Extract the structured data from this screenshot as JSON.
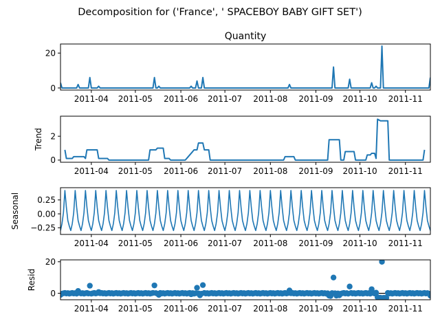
{
  "chart_data": {
    "type": "line",
    "suptitle": "Decomposition for ('France', ' SPACEBOY BABY GIFT SET')",
    "x_range": [
      "2011-03-11",
      "2011-11-18"
    ],
    "x_ticks": [
      "2011-04-01",
      "2011-05-01",
      "2011-06-01",
      "2011-07-01",
      "2011-08-01",
      "2011-09-01",
      "2011-10-01",
      "2011-11-01"
    ],
    "x_tick_labels": [
      "2011-04",
      "2011-05",
      "2011-06",
      "2011-07",
      "2011-08",
      "2011-09",
      "2011-10",
      "2011-11"
    ],
    "line_color": "#1f77b4",
    "panels": [
      {
        "id": "observed",
        "title": "Quantity",
        "ylabel": "",
        "ylim": [
          -1.2,
          25.2
        ],
        "yticks": [
          0,
          20
        ],
        "ytick_labels": [
          "0",
          "20"
        ],
        "style": "line",
        "points": [
          [
            "2011-03-11",
            3
          ],
          [
            "2011-03-12",
            0
          ],
          [
            "2011-03-22",
            0
          ],
          [
            "2011-03-23",
            2
          ],
          [
            "2011-03-24",
            0
          ],
          [
            "2011-03-30",
            0
          ],
          [
            "2011-03-31",
            6
          ],
          [
            "2011-04-01",
            0
          ],
          [
            "2011-04-05",
            0
          ],
          [
            "2011-04-06",
            1
          ],
          [
            "2011-04-07",
            0
          ],
          [
            "2011-05-13",
            0
          ],
          [
            "2011-05-14",
            6
          ],
          [
            "2011-05-15",
            0
          ],
          [
            "2011-05-16",
            0
          ],
          [
            "2011-05-17",
            1
          ],
          [
            "2011-05-18",
            0
          ],
          [
            "2011-06-07",
            0
          ],
          [
            "2011-06-08",
            1
          ],
          [
            "2011-06-09",
            0
          ],
          [
            "2011-06-11",
            0
          ],
          [
            "2011-06-12",
            4
          ],
          [
            "2011-06-13",
            0
          ],
          [
            "2011-06-15",
            0
          ],
          [
            "2011-06-16",
            6
          ],
          [
            "2011-06-17",
            0
          ],
          [
            "2011-08-13",
            0
          ],
          [
            "2011-08-14",
            2
          ],
          [
            "2011-08-15",
            0
          ],
          [
            "2011-09-12",
            0
          ],
          [
            "2011-09-13",
            12
          ],
          [
            "2011-09-14",
            0
          ],
          [
            "2011-09-23",
            0
          ],
          [
            "2011-09-24",
            5
          ],
          [
            "2011-09-25",
            0
          ],
          [
            "2011-10-08",
            0
          ],
          [
            "2011-10-09",
            3
          ],
          [
            "2011-10-10",
            0
          ],
          [
            "2011-10-11",
            0
          ],
          [
            "2011-10-12",
            1
          ],
          [
            "2011-10-13",
            0
          ],
          [
            "2011-10-15",
            0
          ],
          [
            "2011-10-16",
            24
          ],
          [
            "2011-10-17",
            0
          ],
          [
            "2011-11-17",
            0
          ],
          [
            "2011-11-18",
            6
          ]
        ]
      },
      {
        "id": "trend",
        "title": "",
        "ylabel": "Trend",
        "ylim": [
          -0.18,
          3.68
        ],
        "yticks": [
          0,
          2
        ],
        "ytick_labels": [
          "0",
          "2"
        ],
        "style": "line",
        "points": [
          [
            "2011-03-14",
            0.86
          ],
          [
            "2011-03-15",
            0.14
          ],
          [
            "2011-03-19",
            0.14
          ],
          [
            "2011-03-20",
            0.29
          ],
          [
            "2011-03-27",
            0.29
          ],
          [
            "2011-03-28",
            0.14
          ],
          [
            "2011-03-29",
            0.86
          ],
          [
            "2011-04-05",
            0.86
          ],
          [
            "2011-04-06",
            0.14
          ],
          [
            "2011-04-12",
            0.14
          ],
          [
            "2011-04-13",
            0
          ],
          [
            "2011-05-10",
            0
          ],
          [
            "2011-05-11",
            0.86
          ],
          [
            "2011-05-15",
            0.86
          ],
          [
            "2011-05-16",
            1
          ],
          [
            "2011-05-20",
            1
          ],
          [
            "2011-05-21",
            0.14
          ],
          [
            "2011-05-24",
            0.14
          ],
          [
            "2011-05-25",
            0
          ],
          [
            "2011-06-04",
            0
          ],
          [
            "2011-06-05",
            0.14
          ],
          [
            "2011-06-09",
            0.71
          ],
          [
            "2011-06-10",
            0.86
          ],
          [
            "2011-06-12",
            0.86
          ],
          [
            "2011-06-13",
            1.43
          ],
          [
            "2011-06-16",
            1.43
          ],
          [
            "2011-06-17",
            0.86
          ],
          [
            "2011-06-20",
            0.86
          ],
          [
            "2011-06-21",
            0
          ],
          [
            "2011-08-10",
            0
          ],
          [
            "2011-08-11",
            0.29
          ],
          [
            "2011-08-17",
            0.29
          ],
          [
            "2011-08-18",
            0
          ],
          [
            "2011-09-09",
            0
          ],
          [
            "2011-09-10",
            1.71
          ],
          [
            "2011-09-17",
            1.71
          ],
          [
            "2011-09-18",
            0
          ],
          [
            "2011-09-20",
            0
          ],
          [
            "2011-09-21",
            0.71
          ],
          [
            "2011-09-27",
            0.71
          ],
          [
            "2011-09-28",
            0
          ],
          [
            "2011-10-05",
            0
          ],
          [
            "2011-10-06",
            0.43
          ],
          [
            "2011-10-08",
            0.43
          ],
          [
            "2011-10-09",
            0.57
          ],
          [
            "2011-10-11",
            0.57
          ],
          [
            "2011-10-12",
            0.14
          ],
          [
            "2011-10-13",
            3.43
          ],
          [
            "2011-10-15",
            3.29
          ],
          [
            "2011-10-20",
            3.29
          ],
          [
            "2011-10-21",
            0
          ],
          [
            "2011-11-13",
            0
          ],
          [
            "2011-11-14",
            0.86
          ]
        ]
      },
      {
        "id": "seasonal",
        "title": "",
        "ylabel": "Seasonal",
        "ylim": [
          -0.37,
          0.47
        ],
        "yticks": [
          -0.25,
          0,
          0.25
        ],
        "ytick_labels": [
          "−0.25",
          "0.00",
          "0.25"
        ],
        "style": "seasonal",
        "period_days": 7,
        "cycle_values": [
          -0.3,
          -0.18,
          0.02,
          0.42,
          0.12,
          -0.12,
          -0.22
        ]
      },
      {
        "id": "resid",
        "title": "",
        "ylabel": "Resid",
        "ylim": [
          -4.1,
          21.2
        ],
        "yticks": [
          0,
          20
        ],
        "ytick_labels": [
          "0",
          "20"
        ],
        "style": "scatter",
        "baseline": 0,
        "outliers": [
          [
            "2011-03-11",
            -1
          ],
          [
            "2011-03-23",
            1.5
          ],
          [
            "2011-03-31",
            4.8
          ],
          [
            "2011-04-06",
            0.8
          ],
          [
            "2011-05-14",
            5
          ],
          [
            "2011-05-17",
            -1
          ],
          [
            "2011-06-08",
            -0.6
          ],
          [
            "2011-06-12",
            3.5
          ],
          [
            "2011-06-14",
            -1.3
          ],
          [
            "2011-06-16",
            5.2
          ],
          [
            "2011-08-14",
            1.8
          ],
          [
            "2011-09-10",
            -1.5
          ],
          [
            "2011-09-11",
            -1.7
          ],
          [
            "2011-09-13",
            10
          ],
          [
            "2011-09-15",
            -1.5
          ],
          [
            "2011-09-17",
            -1.3
          ],
          [
            "2011-09-24",
            4.3
          ],
          [
            "2011-10-09",
            2.6
          ],
          [
            "2011-10-12",
            0.4
          ],
          [
            "2011-10-13",
            -2.5
          ],
          [
            "2011-10-14",
            -2.8
          ],
          [
            "2011-10-15",
            -2.8
          ],
          [
            "2011-10-16",
            20
          ],
          [
            "2011-10-17",
            -2.9
          ],
          [
            "2011-10-18",
            -2.9
          ],
          [
            "2011-10-19",
            -2.9
          ],
          [
            "2011-11-18",
            -1.5
          ]
        ]
      }
    ]
  }
}
